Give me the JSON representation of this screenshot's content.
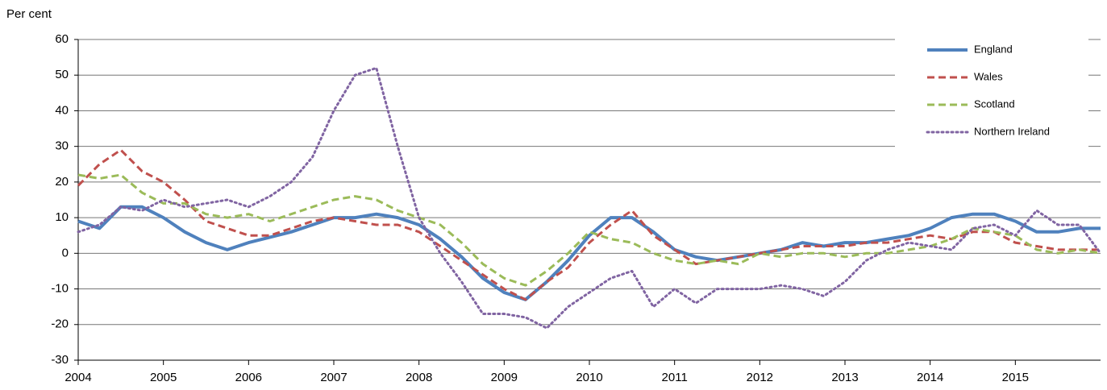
{
  "chart_data": {
    "type": "line",
    "y_label": "Per cent",
    "x": [
      2004,
      2004.25,
      2004.5,
      2004.75,
      2005,
      2005.25,
      2005.5,
      2005.75,
      2006,
      2006.25,
      2006.5,
      2006.75,
      2007,
      2007.25,
      2007.5,
      2007.75,
      2008,
      2008.25,
      2008.5,
      2008.75,
      2009,
      2009.25,
      2009.5,
      2009.75,
      2010,
      2010.25,
      2010.5,
      2010.75,
      2011,
      2011.25,
      2011.5,
      2011.75,
      2012,
      2012.25,
      2012.5,
      2012.75,
      2013,
      2013.25,
      2013.5,
      2013.75,
      2014,
      2014.25,
      2014.5,
      2014.75,
      2015,
      2015.25,
      2015.5,
      2015.75,
      2016
    ],
    "xlim": [
      2004,
      2016
    ],
    "xticks": [
      2004,
      2005,
      2006,
      2007,
      2008,
      2009,
      2010,
      2011,
      2012,
      2013,
      2014,
      2015
    ],
    "ylim": [
      -30,
      60
    ],
    "yticks": [
      -30,
      -20,
      -10,
      0,
      10,
      20,
      30,
      40,
      50,
      60
    ],
    "grid": true,
    "legend": "top-right",
    "series": [
      {
        "name": "England",
        "color": "#4f81bd",
        "dash": "solid",
        "values": [
          9,
          7,
          13,
          13,
          10,
          6,
          3,
          1,
          3,
          4.5,
          6,
          8,
          10,
          10,
          11,
          10,
          8,
          4,
          -1,
          -7,
          -11,
          -13,
          -8,
          -2,
          5,
          10,
          10,
          6,
          1,
          -1,
          -2,
          -1,
          0,
          1,
          3,
          2,
          3,
          3,
          4,
          5,
          7,
          10,
          11,
          11,
          9,
          6,
          6,
          7,
          7
        ]
      },
      {
        "name": "Wales",
        "color": "#c0504d",
        "dash": "dashed",
        "values": [
          19,
          25,
          29,
          23,
          20,
          15,
          9,
          7,
          5,
          5,
          7,
          9,
          10,
          9,
          8,
          8,
          6,
          2,
          -2,
          -6,
          -10,
          -13,
          -8,
          -4,
          3,
          8,
          12,
          5,
          1,
          -3,
          -2,
          -1,
          0,
          1,
          2,
          2,
          2,
          3,
          3,
          4,
          5,
          4,
          6,
          6,
          3,
          2,
          1,
          1,
          1
        ]
      },
      {
        "name": "Scotland",
        "color": "#9bbb59",
        "dash": "dashed",
        "values": [
          22,
          21,
          22,
          17,
          14,
          14,
          11,
          10,
          11,
          9,
          11,
          13,
          15,
          16,
          15,
          12,
          10,
          8,
          3,
          -3,
          -7,
          -9,
          -5,
          0,
          6,
          4,
          3,
          0,
          -2,
          -3,
          -2,
          -3,
          0,
          -1,
          0,
          0,
          -1,
          0,
          0,
          1,
          2,
          4,
          7,
          6,
          5,
          1,
          0,
          1,
          0
        ]
      },
      {
        "name": "Northern Ireland",
        "color": "#8064a2",
        "dash": "dotted",
        "values": [
          6,
          8,
          13,
          12,
          15,
          13,
          14,
          15,
          13,
          16,
          20,
          27,
          40,
          50,
          52,
          30,
          10,
          0,
          -8,
          -17,
          -17,
          -18,
          -21,
          -15,
          -11,
          -7,
          -5,
          -15,
          -10,
          -14,
          -10,
          -10,
          -10,
          -9,
          -10,
          -12,
          -8,
          -2,
          1,
          3,
          2,
          1,
          7,
          8,
          5,
          12,
          8,
          8,
          0
        ]
      }
    ]
  }
}
